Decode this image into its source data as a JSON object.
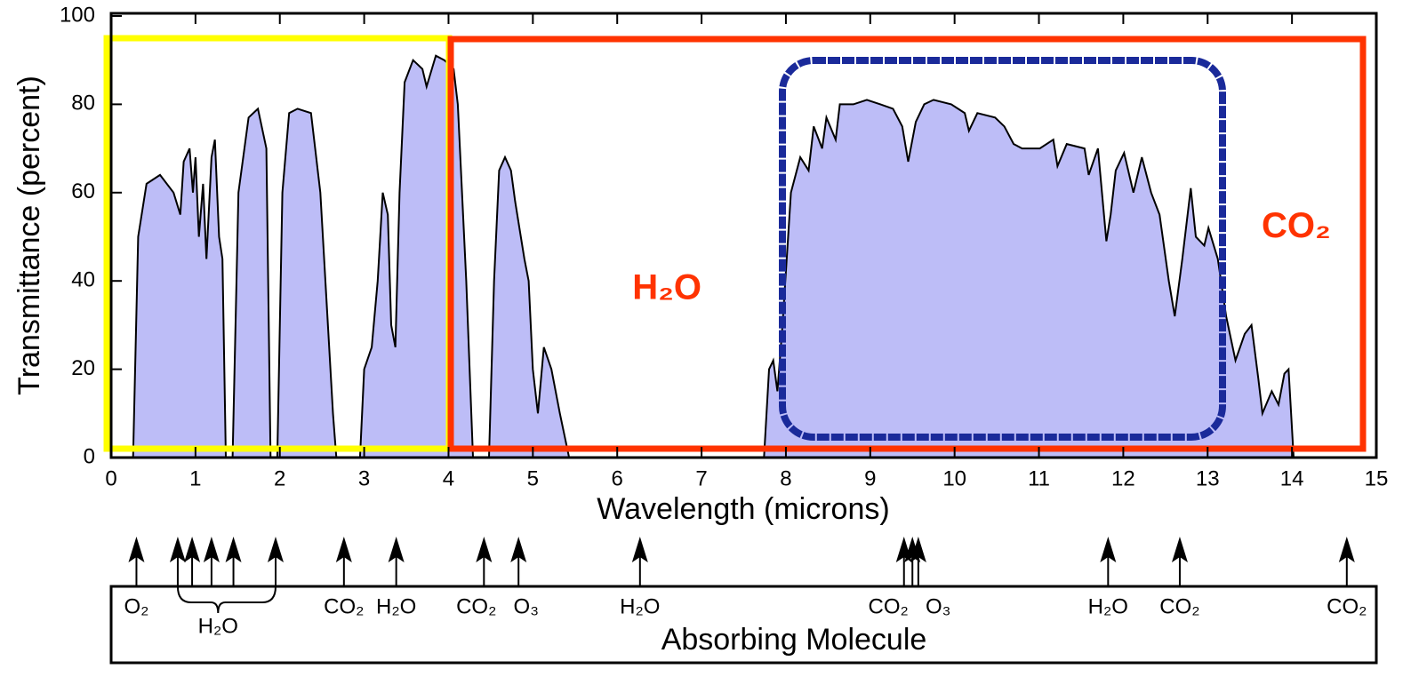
{
  "chart_data": {
    "type": "area",
    "xlabel": "Wavelength (microns)",
    "ylabel": "Transmittance (percent)",
    "xlim": [
      0,
      15
    ],
    "xticks": [
      0,
      1,
      2,
      3,
      4,
      5,
      6,
      7,
      8,
      9,
      10,
      11,
      12,
      13,
      14,
      15
    ],
    "ylim": [
      0,
      100
    ],
    "yticks": [
      0,
      20,
      40,
      60,
      80,
      100
    ],
    "color": "#bdbdf7",
    "x": [
      0.26,
      0.32,
      0.42,
      0.58,
      0.74,
      0.82,
      0.86,
      0.93,
      0.97,
      1.0,
      1.04,
      1.09,
      1.13,
      1.19,
      1.23,
      1.28,
      1.32,
      1.36,
      1.44,
      1.51,
      1.63,
      1.74,
      1.84,
      1.89,
      1.97,
      2.03,
      2.11,
      2.21,
      2.37,
      2.48,
      2.63,
      2.67,
      2.95,
      3.0,
      3.09,
      3.16,
      3.22,
      3.28,
      3.32,
      3.37,
      3.42,
      3.48,
      3.58,
      3.69,
      3.74,
      3.85,
      3.95,
      4.06,
      4.11,
      4.21,
      4.29,
      4.48,
      4.54,
      4.6,
      4.67,
      4.74,
      4.79,
      4.9,
      4.95,
      5.0,
      5.06,
      5.13,
      5.22,
      5.32,
      5.43,
      7.74,
      7.8,
      7.85,
      7.9,
      7.96,
      8.06,
      8.17,
      8.27,
      8.33,
      8.43,
      8.48,
      8.59,
      8.64,
      8.8,
      8.96,
      9.12,
      9.27,
      9.38,
      9.45,
      9.54,
      9.64,
      9.75,
      9.96,
      10.12,
      10.17,
      10.27,
      10.48,
      10.59,
      10.7,
      10.8,
      11.01,
      11.17,
      11.22,
      11.33,
      11.54,
      11.59,
      11.7,
      11.8,
      11.85,
      11.91,
      12.01,
      12.12,
      12.22,
      12.33,
      12.43,
      12.54,
      12.61,
      12.7,
      12.8,
      12.86,
      12.96,
      13.01,
      13.12,
      13.22,
      13.33,
      13.44,
      13.52,
      13.6,
      13.65,
      13.76,
      13.84,
      13.91,
      13.96,
      14.02
    ],
    "values": [
      0,
      50,
      62,
      64,
      60,
      55,
      67,
      70,
      60,
      68,
      50,
      62,
      45,
      68,
      72,
      50,
      45,
      0,
      0,
      60,
      77,
      79,
      70,
      0,
      0,
      60,
      78,
      79,
      78,
      60,
      10,
      0,
      0,
      20,
      25,
      40,
      60,
      55,
      30,
      25,
      60,
      85,
      90,
      88,
      84,
      91,
      90,
      88,
      80,
      40,
      0,
      0,
      40,
      65,
      68,
      65,
      58,
      45,
      40,
      20,
      10,
      25,
      20,
      10,
      0,
      0,
      20,
      22,
      15,
      30,
      60,
      68,
      65,
      75,
      70,
      77,
      72,
      80,
      80,
      81,
      80,
      79,
      75,
      67,
      76,
      80,
      81,
      80,
      78,
      74,
      78,
      77,
      75,
      71,
      70,
      70,
      72,
      66,
      71,
      70,
      64,
      70,
      49,
      55,
      65,
      69,
      60,
      68,
      60,
      55,
      40,
      32,
      45,
      61,
      50,
      48,
      52,
      45,
      32,
      22,
      28,
      30,
      18,
      10,
      15,
      12,
      19,
      20,
      0
    ],
    "annotations": [
      {
        "text": "H₂O",
        "x": 6.59,
        "y": 38
      },
      {
        "text": "CO₂",
        "x": 14.05,
        "y": 52
      }
    ],
    "absorbers": {
      "title": "Absorbing Molecule",
      "bands": [
        {
          "label": "O₂",
          "x": [
            0.3
          ]
        },
        {
          "label": "H₂O",
          "x": [
            0.79,
            0.96,
            1.19,
            1.45,
            1.95
          ]
        },
        {
          "label": "CO₂",
          "x": [
            2.76
          ]
        },
        {
          "label": "H₂O",
          "x": [
            3.38
          ]
        },
        {
          "label": "CO₂",
          "x": [
            4.42
          ]
        },
        {
          "label": "O₃",
          "x": [
            4.83
          ]
        },
        {
          "label": "H₂O",
          "x": [
            6.27
          ]
        },
        {
          "label": "CO₂",
          "x": [
            9.4,
            9.5
          ]
        },
        {
          "label": "O₃",
          "x": [
            9.57
          ]
        },
        {
          "label": "H₂O",
          "x": [
            11.82
          ]
        },
        {
          "label": "CO₂",
          "x": [
            12.67
          ]
        },
        {
          "label": "CO₂",
          "x": [
            14.65
          ]
        }
      ]
    }
  }
}
